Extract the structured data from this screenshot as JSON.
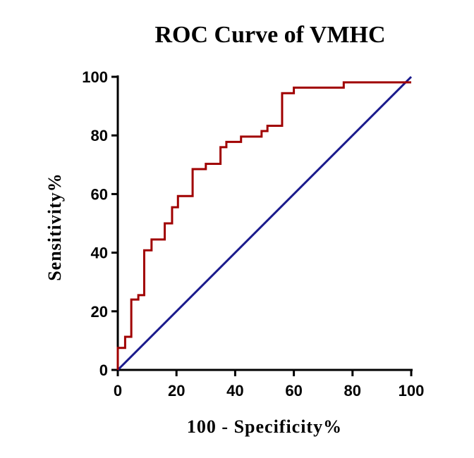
{
  "chart_data": {
    "type": "line",
    "title": "ROC Curve of VMHC",
    "xlabel": "100 - Specificity%",
    "ylabel": "Sensitivity%",
    "xlim": [
      0,
      100
    ],
    "ylim": [
      0,
      100
    ],
    "xticks": [
      0,
      20,
      40,
      60,
      80,
      100
    ],
    "yticks": [
      0,
      20,
      40,
      60,
      80,
      100
    ],
    "grid": false,
    "colors": {
      "roc": "#a00000",
      "reference": "#1a1a8c",
      "axis": "#000000"
    },
    "series": [
      {
        "name": "ROC",
        "step": true,
        "points": [
          [
            0,
            0
          ],
          [
            0,
            7.5
          ],
          [
            2.5,
            7.5
          ],
          [
            2.5,
            11.3
          ],
          [
            4.6,
            11.3
          ],
          [
            4.6,
            24
          ],
          [
            7,
            24
          ],
          [
            7,
            25.5
          ],
          [
            9,
            25.5
          ],
          [
            9,
            40.8
          ],
          [
            11.5,
            40.8
          ],
          [
            11.5,
            44.5
          ],
          [
            16,
            44.5
          ],
          [
            16,
            50
          ],
          [
            18.5,
            50
          ],
          [
            18.5,
            55.5
          ],
          [
            20.5,
            55.5
          ],
          [
            20.5,
            59.3
          ],
          [
            25.5,
            59.3
          ],
          [
            25.5,
            68.5
          ],
          [
            30,
            68.5
          ],
          [
            30,
            70.3
          ],
          [
            35,
            70.3
          ],
          [
            35,
            76
          ],
          [
            37,
            76
          ],
          [
            37,
            77.8
          ],
          [
            42,
            77.8
          ],
          [
            42,
            79.6
          ],
          [
            49,
            79.6
          ],
          [
            49,
            81.5
          ],
          [
            51,
            81.5
          ],
          [
            51,
            83.3
          ],
          [
            56,
            83.3
          ],
          [
            56,
            94.4
          ],
          [
            60,
            94.4
          ],
          [
            60,
            96.3
          ],
          [
            77,
            96.3
          ],
          [
            77,
            98.1
          ],
          [
            100,
            98.1
          ]
        ]
      },
      {
        "name": "Reference",
        "step": false,
        "points": [
          [
            0,
            0
          ],
          [
            100,
            100
          ]
        ]
      }
    ]
  }
}
